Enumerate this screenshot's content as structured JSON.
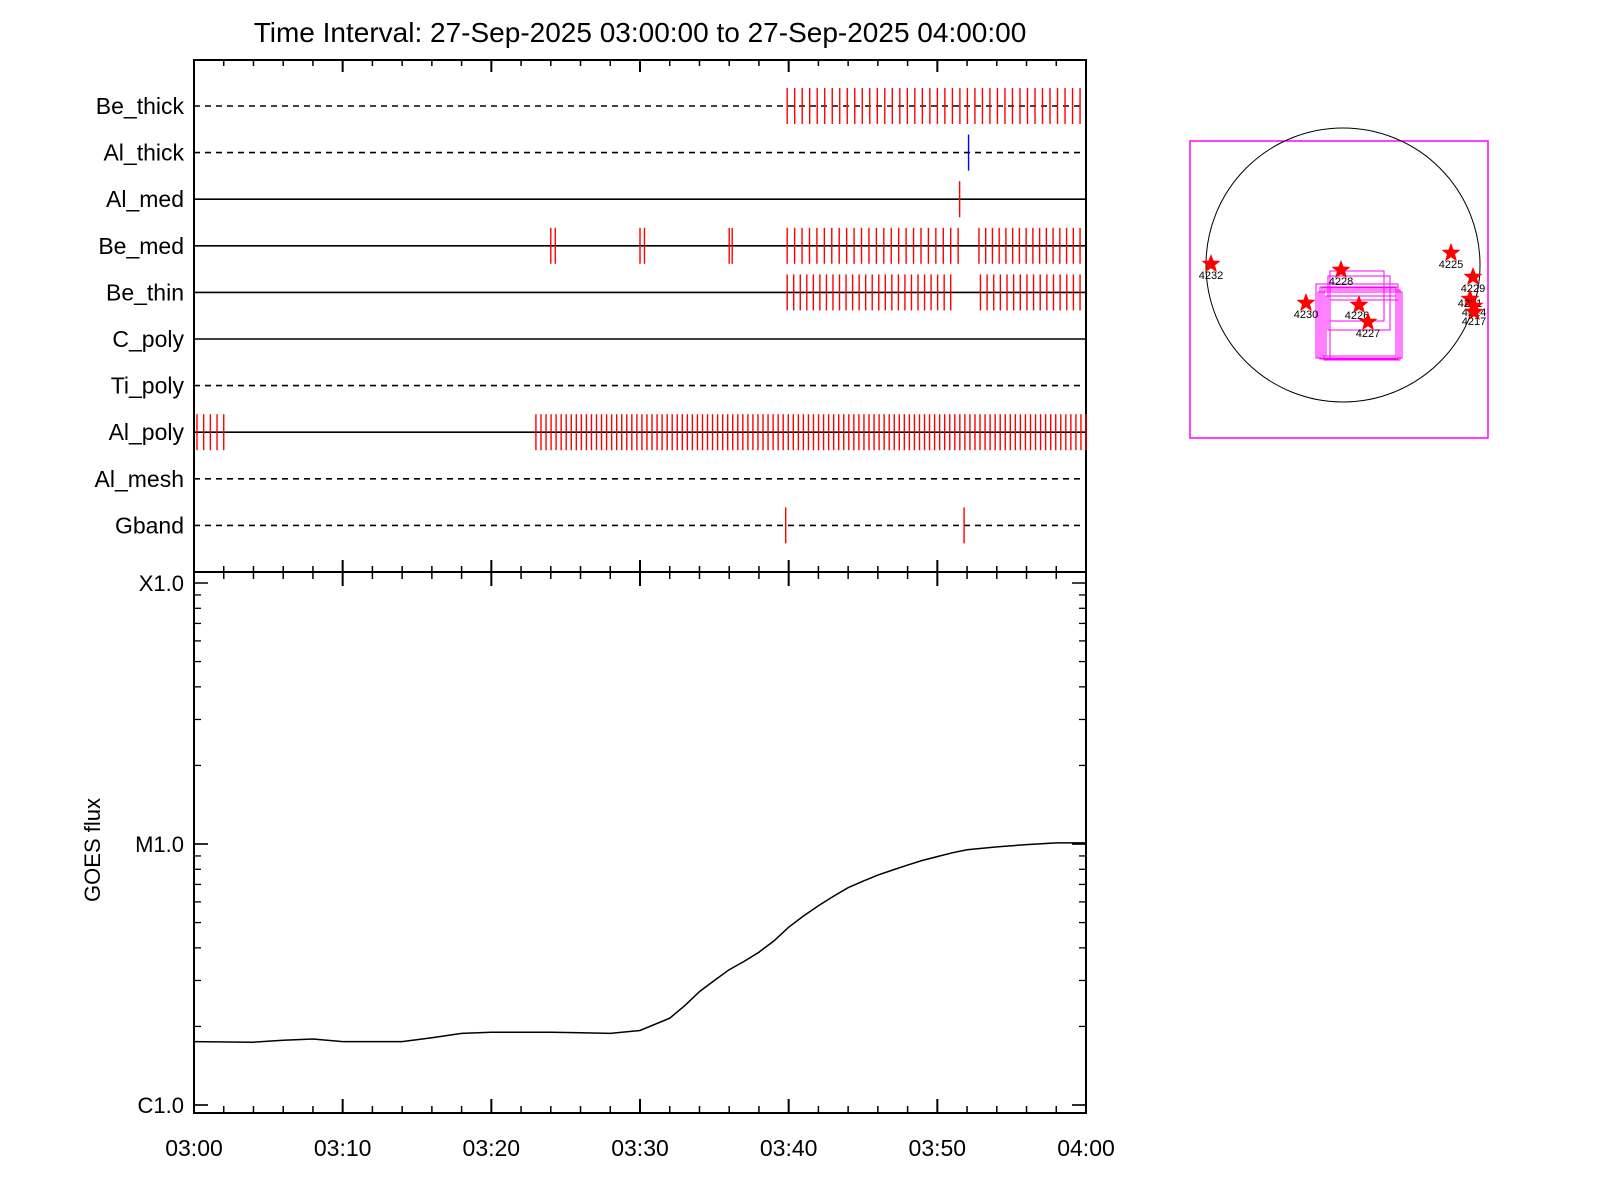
{
  "chart_data": [
    {
      "type": "event_timeline",
      "title": "Time Interval: 27-Sep-2025 03:00:00 to 27-Sep-2025 04:00:00",
      "x_range": [
        "03:00",
        "04:00"
      ],
      "x_tick_labels": [
        "03:00",
        "03:10",
        "03:20",
        "03:30",
        "03:40",
        "03:50",
        "04:00"
      ],
      "rows": [
        {
          "label": "Be_thick",
          "line": "dashed",
          "events": [
            {
              "from": 39.9,
              "to": 59.6,
              "count": 40,
              "color": "#ff0000"
            }
          ]
        },
        {
          "label": "Al_thick",
          "line": "dashed",
          "events": [
            {
              "at": 52.1,
              "color": "#0000ff"
            }
          ]
        },
        {
          "label": "Al_med",
          "line": "solid",
          "events": [
            {
              "at": 51.5,
              "color": "#ff0000"
            }
          ]
        },
        {
          "label": "Be_med",
          "line": "solid",
          "events": [
            {
              "from": 24.0,
              "to": 24.3,
              "count": 2,
              "color": "#ff0000"
            },
            {
              "from": 30.0,
              "to": 30.3,
              "count": 2,
              "color": "#ff0000"
            },
            {
              "from": 36.0,
              "to": 36.2,
              "count": 2,
              "color": "#ff0000"
            },
            {
              "from": 39.9,
              "to": 51.4,
              "count": 24,
              "color": "#ff0000"
            },
            {
              "from": 52.8,
              "to": 59.6,
              "count": 16,
              "color": "#ff0000"
            }
          ]
        },
        {
          "label": "Be_thin",
          "line": "solid",
          "events": [
            {
              "from": 39.9,
              "to": 50.9,
              "count": 26,
              "color": "#ff0000"
            },
            {
              "from": 52.9,
              "to": 59.6,
              "count": 16,
              "color": "#ff0000"
            }
          ]
        },
        {
          "label": "C_poly",
          "line": "solid",
          "events": []
        },
        {
          "label": "Ti_poly",
          "line": "dashed",
          "events": []
        },
        {
          "label": "Al_poly",
          "line": "solid",
          "events": [
            {
              "from": 0.2,
              "to": 2.0,
              "count": 5,
              "color": "#ff0000"
            },
            {
              "from": 23.0,
              "to": 60.0,
              "count": 110,
              "color": "#ff0000"
            }
          ]
        },
        {
          "label": "Al_mesh",
          "line": "dashed",
          "events": []
        },
        {
          "label": "Gband",
          "line": "dashed",
          "events": [
            {
              "at": 39.8,
              "color": "#ff0000"
            },
            {
              "at": 51.8,
              "color": "#ff0000"
            }
          ]
        }
      ]
    },
    {
      "type": "line",
      "ylabel": "GOES flux",
      "y_scale": "log",
      "y_ticks": [
        {
          "value": 1e-06,
          "label": "C1.0"
        },
        {
          "value": 1e-05,
          "label": "M1.0"
        },
        {
          "value": 0.0001,
          "label": "X1.0"
        }
      ],
      "x_range": [
        "03:00",
        "04:00"
      ],
      "x_tick_labels": [
        "03:00",
        "03:10",
        "03:20",
        "03:30",
        "03:40",
        "03:50",
        "04:00"
      ],
      "series": [
        {
          "x": [
            "03:00",
            "03:04",
            "03:06",
            "03:08",
            "03:10",
            "03:14",
            "03:16",
            "03:18",
            "03:20",
            "03:24",
            "03:26",
            "03:28",
            "03:30",
            "03:32",
            "03:33",
            "03:34",
            "03:35",
            "03:36",
            "03:37",
            "03:38",
            "03:39",
            "03:40",
            "03:41",
            "03:42",
            "03:43",
            "03:44",
            "03:45",
            "03:46",
            "03:47",
            "03:48",
            "03:49",
            "03:50",
            "03:51",
            "03:52",
            "03:54",
            "03:56",
            "03:58",
            "04:00"
          ],
          "y": [
            1.75e-06,
            1.74e-06,
            1.77e-06,
            1.79e-06,
            1.75e-06,
            1.75e-06,
            1.81e-06,
            1.88e-06,
            1.9e-06,
            1.9e-06,
            1.89e-06,
            1.88e-06,
            1.93e-06,
            2.15e-06,
            2.4e-06,
            2.72e-06,
            3e-06,
            3.3e-06,
            3.55e-06,
            3.85e-06,
            4.25e-06,
            4.8e-06,
            5.3e-06,
            5.8e-06,
            6.3e-06,
            6.8e-06,
            7.2e-06,
            7.6e-06,
            7.95e-06,
            8.3e-06,
            8.65e-06,
            8.95e-06,
            9.25e-06,
            9.5e-06,
            9.75e-06,
            9.95e-06,
            1.01e-05,
            1.01e-05
          ],
          "color": "#000000"
        }
      ]
    },
    {
      "type": "solar_disk_map",
      "frame_color": "#ff00ff",
      "marker_color": "#ff0000",
      "regions": [
        "4232",
        "4228",
        "4225",
        "4229",
        "4230",
        "4226",
        "4231",
        "4227",
        "4224",
        "4217"
      ]
    }
  ]
}
